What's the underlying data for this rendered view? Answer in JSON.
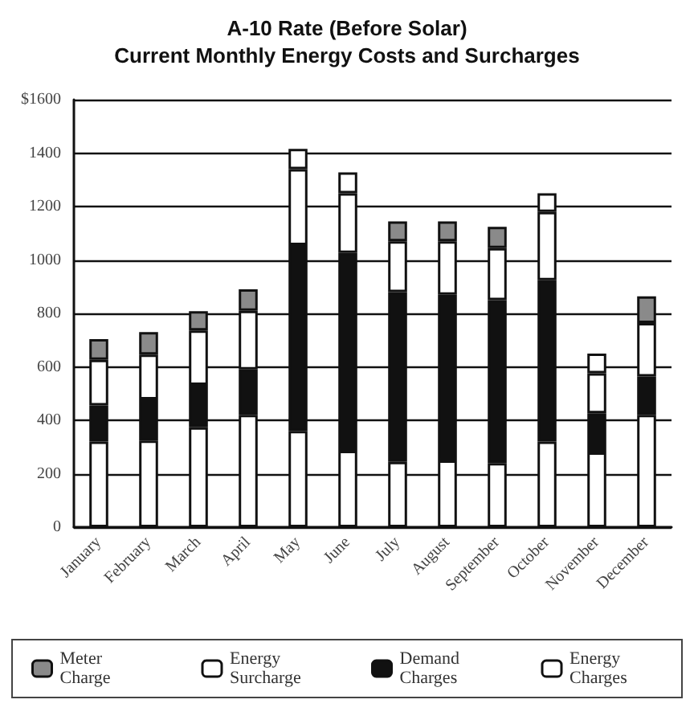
{
  "chart_data": {
    "type": "bar",
    "title": "A-10 Rate (Before Solar)",
    "subtitle": "Current Monthly Energy Costs and Surcharges",
    "categories": [
      "January",
      "February",
      "March",
      "April",
      "May",
      "June",
      "July",
      "August",
      "September",
      "October",
      "November",
      "December"
    ],
    "stacked": true,
    "ylim": [
      0,
      1600
    ],
    "yticks": [
      0,
      200,
      400,
      600,
      800,
      1000,
      1200,
      1400,
      {
        "value": 1600,
        "label": "$1600"
      }
    ],
    "grid": "y",
    "legend": "bottom",
    "series": [
      {
        "name": "Energy Charges",
        "color": "#ffffff",
        "values": [
          320,
          324,
          374,
          420,
          360,
          286,
          244,
          250,
          240,
          320,
          280,
          420
        ]
      },
      {
        "name": "Demand Charges",
        "color": "#111111",
        "values": [
          136,
          154,
          158,
          170,
          696,
          740,
          636,
          620,
          610,
          604,
          146,
          144
        ]
      },
      {
        "name": "Energy Surcharge",
        "color": "#ffffff",
        "values": [
          170,
          168,
          204,
          220,
          284,
          224,
          190,
          200,
          194,
          256,
          150,
          200
        ]
      },
      {
        "name": "Meter Charge",
        "color": "#8a8a8a",
        "colors": [
          "#8a8a8a",
          "#8a8a8a",
          "#8a8a8a",
          "#8a8a8a",
          "#ffffff",
          "#ffffff",
          "#8a8a8a",
          "#8a8a8a",
          "#8a8a8a",
          "#ffffff",
          "#ffffff",
          "#8a8a8a"
        ],
        "values": [
          78,
          84,
          72,
          80,
          76,
          78,
          74,
          74,
          80,
          70,
          74,
          100
        ]
      }
    ]
  }
}
